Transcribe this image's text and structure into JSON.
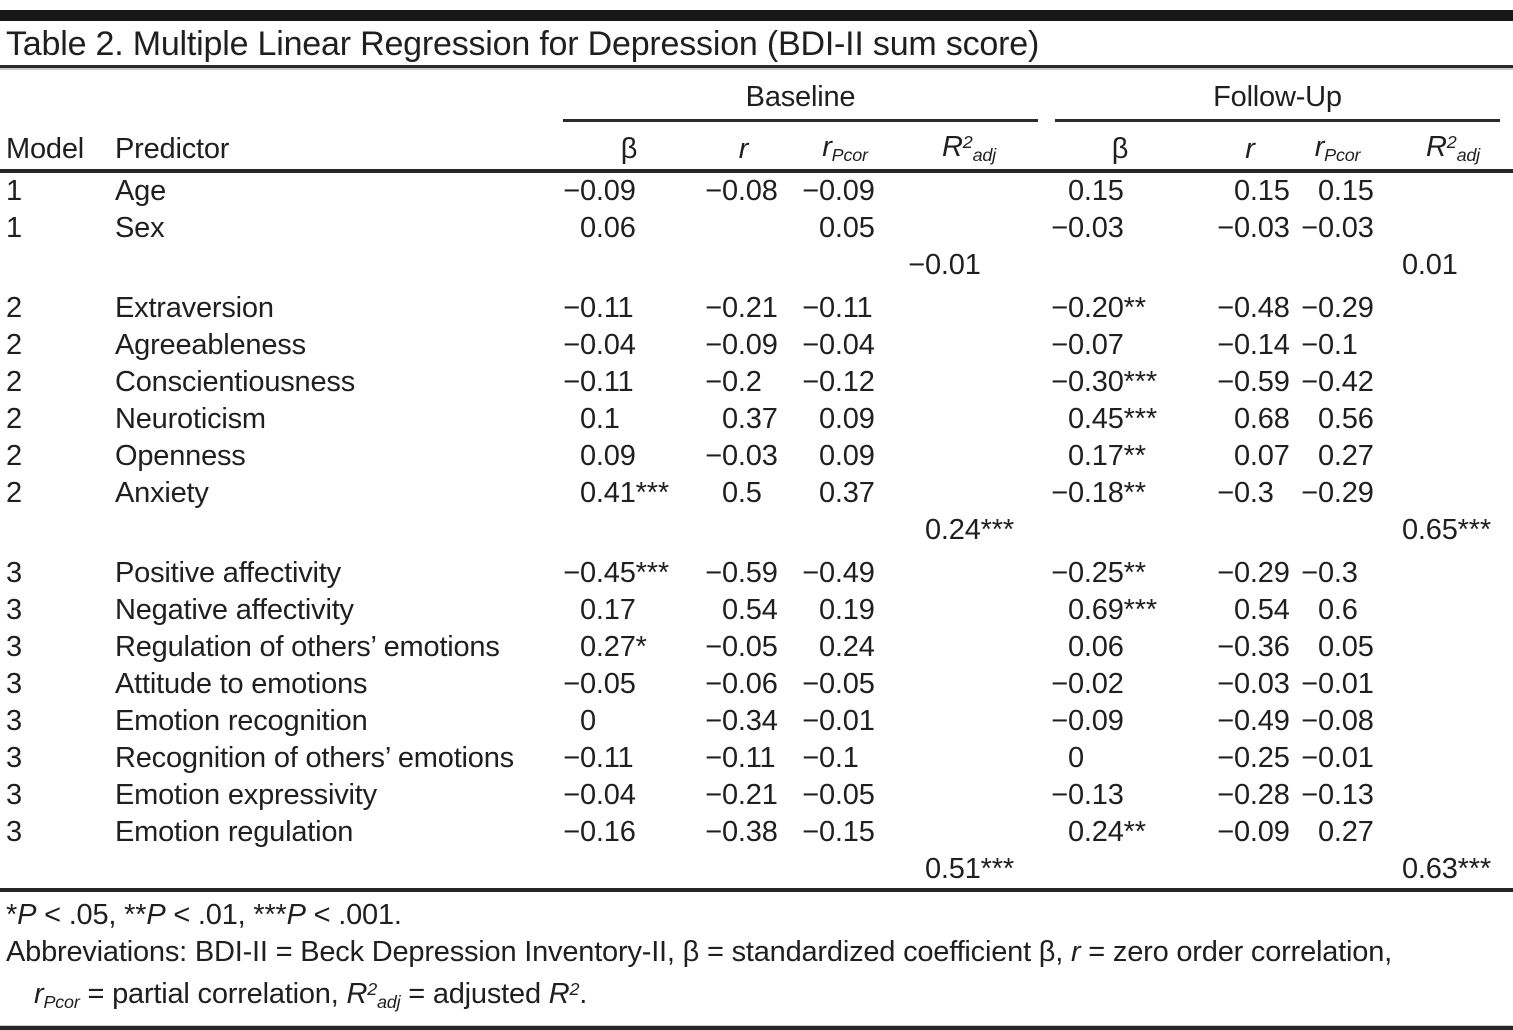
{
  "table": {
    "title": "Table 2. Multiple Linear Regression for Depression (BDI-II sum score)",
    "header": {
      "model": "Model",
      "predictor": "Predictor",
      "groups": {
        "baseline": "Baseline",
        "followup": "Follow-Up"
      },
      "metrics": {
        "beta": "β",
        "r": "r",
        "rpcor_base": "r",
        "rpcor_sub": "Pcor",
        "r2_base": "R",
        "r2_sup": "2",
        "r2_sub": "adj"
      }
    },
    "rows": [
      {
        "model": "1",
        "predictor": "Age",
        "b_beta": "−0.09",
        "b_r": "−0.08",
        "b_rpcor": "−0.09",
        "b_r2": "",
        "f_beta": "0.15",
        "f_r": "0.15",
        "f_rpcor": "0.15",
        "f_r2": ""
      },
      {
        "model": "1",
        "predictor": "Sex",
        "b_beta": "0.06",
        "b_r": "",
        "b_rpcor": "0.05",
        "b_r2": "",
        "f_beta": "−0.03",
        "f_r": "−0.03",
        "f_rpcor": "−0.03",
        "f_r2": ""
      },
      {
        "model": "",
        "predictor": "",
        "b_beta": "",
        "b_r": "",
        "b_rpcor": "",
        "b_r2": "−0.01",
        "f_beta": "",
        "f_r": "",
        "f_rpcor": "",
        "f_r2": "0.01",
        "gap_after": true
      },
      {
        "model": "2",
        "predictor": "Extraversion",
        "b_beta": "−0.11",
        "b_r": "−0.21",
        "b_rpcor": "−0.11",
        "b_r2": "",
        "f_beta": "−0.20**",
        "f_r": "−0.48",
        "f_rpcor": "−0.29",
        "f_r2": ""
      },
      {
        "model": "2",
        "predictor": "Agreeableness",
        "b_beta": "−0.04",
        "b_r": "−0.09",
        "b_rpcor": "−0.04",
        "b_r2": "",
        "f_beta": "−0.07",
        "f_r": "−0.14",
        "f_rpcor": "−0.1",
        "f_r2": ""
      },
      {
        "model": "2",
        "predictor": "Conscientiousness",
        "b_beta": "−0.11",
        "b_r": "−0.2",
        "b_rpcor": "−0.12",
        "b_r2": "",
        "f_beta": "−0.30***",
        "f_r": "−0.59",
        "f_rpcor": "−0.42",
        "f_r2": ""
      },
      {
        "model": "2",
        "predictor": "Neuroticism",
        "b_beta": "0.1",
        "b_r": "0.37",
        "b_rpcor": "0.09",
        "b_r2": "",
        "f_beta": "0.45***",
        "f_r": "0.68",
        "f_rpcor": "0.56",
        "f_r2": ""
      },
      {
        "model": "2",
        "predictor": "Openness",
        "b_beta": "0.09",
        "b_r": "−0.03",
        "b_rpcor": "0.09",
        "b_r2": "",
        "f_beta": "0.17**",
        "f_r": "0.07",
        "f_rpcor": "0.27",
        "f_r2": ""
      },
      {
        "model": "2",
        "predictor": "Anxiety",
        "b_beta": "0.41***",
        "b_r": "0.5",
        "b_rpcor": "0.37",
        "b_r2": "",
        "f_beta": "−0.18**",
        "f_r": "−0.3",
        "f_rpcor": "−0.29",
        "f_r2": ""
      },
      {
        "model": "",
        "predictor": "",
        "b_beta": "",
        "b_r": "",
        "b_rpcor": "",
        "b_r2": "0.24***",
        "f_beta": "",
        "f_r": "",
        "f_rpcor": "",
        "f_r2": "0.65***",
        "gap_after": true
      },
      {
        "model": "3",
        "predictor": "Positive affectivity",
        "b_beta": "−0.45***",
        "b_r": "−0.59",
        "b_rpcor": "−0.49",
        "b_r2": "",
        "f_beta": "−0.25**",
        "f_r": "−0.29",
        "f_rpcor": "−0.3",
        "f_r2": ""
      },
      {
        "model": "3",
        "predictor": "Negative affectivity",
        "b_beta": "0.17",
        "b_r": "0.54",
        "b_rpcor": "0.19",
        "b_r2": "",
        "f_beta": "0.69***",
        "f_r": "0.54",
        "f_rpcor": "0.6",
        "f_r2": ""
      },
      {
        "model": "3",
        "predictor": "Regulation of others’ emotions",
        "b_beta": "0.27*",
        "b_r": "−0.05",
        "b_rpcor": "0.24",
        "b_r2": "",
        "f_beta": "0.06",
        "f_r": "−0.36",
        "f_rpcor": "0.05",
        "f_r2": ""
      },
      {
        "model": "3",
        "predictor": "Attitude to emotions",
        "b_beta": "−0.05",
        "b_r": "−0.06",
        "b_rpcor": "−0.05",
        "b_r2": "",
        "f_beta": "−0.02",
        "f_r": "−0.03",
        "f_rpcor": "−0.01",
        "f_r2": ""
      },
      {
        "model": "3",
        "predictor": "Emotion recognition",
        "b_beta": "0",
        "b_r": "−0.34",
        "b_rpcor": "−0.01",
        "b_r2": "",
        "f_beta": "−0.09",
        "f_r": "−0.49",
        "f_rpcor": "−0.08",
        "f_r2": ""
      },
      {
        "model": "3",
        "predictor": "Recognition of others’ emotions",
        "b_beta": "−0.11",
        "b_r": "−0.11",
        "b_rpcor": "−0.1",
        "b_r2": "",
        "f_beta": "0",
        "f_r": "−0.25",
        "f_rpcor": "−0.01",
        "f_r2": ""
      },
      {
        "model": "3",
        "predictor": "Emotion expressivity",
        "b_beta": "−0.04",
        "b_r": "−0.21",
        "b_rpcor": "−0.05",
        "b_r2": "",
        "f_beta": "−0.13",
        "f_r": "−0.28",
        "f_rpcor": "−0.13",
        "f_r2": ""
      },
      {
        "model": "3",
        "predictor": "Emotion regulation",
        "b_beta": "−0.16",
        "b_r": "−0.38",
        "b_rpcor": "−0.15",
        "b_r2": "",
        "f_beta": "0.24**",
        "f_r": "−0.09",
        "f_rpcor": "0.27",
        "f_r2": ""
      },
      {
        "model": "",
        "predictor": "",
        "b_beta": "",
        "b_r": "",
        "b_rpcor": "",
        "b_r2": "0.51***",
        "f_beta": "",
        "f_r": "",
        "f_rpcor": "",
        "f_r2": "0.63***"
      }
    ],
    "footnotes": {
      "sig": {
        "a1": "*",
        "p1": "P",
        "t1": " < .05, ",
        "a2": "**",
        "p2": "P",
        "t2": " < .01, ",
        "a3": "***",
        "p3": "P",
        "t3": " < .001."
      },
      "abbr_line1": {
        "t1": "Abbreviations: BDI-II = Beck Depression Inventory-II, β = standardized coefficient β, ",
        "i1": "r",
        "t2": " = zero order correlation,"
      },
      "abbr_line2": {
        "i1": "r",
        "s1": "Pcor",
        "t1": " = partial correlation, ",
        "i2": "R",
        "u2": "2",
        "s2": "adj",
        "t2": " = adjusted ",
        "i3": "R",
        "u3": "2",
        "t3": "."
      }
    }
  }
}
